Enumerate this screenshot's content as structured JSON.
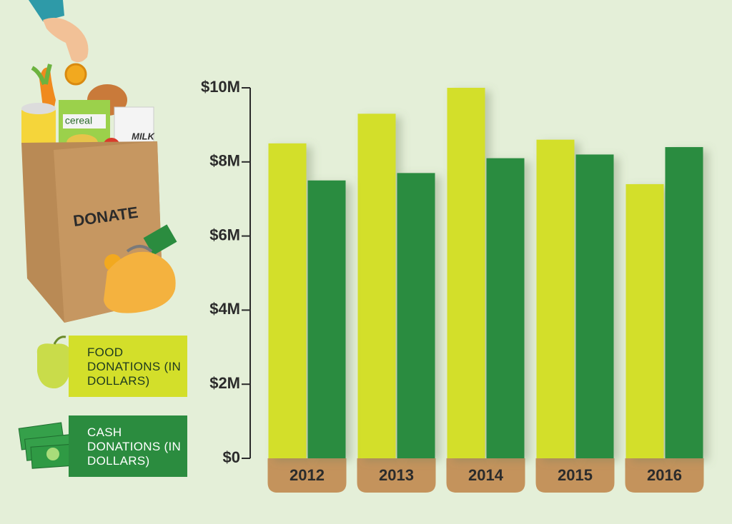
{
  "illustration": {
    "bag_label": "DONATE",
    "box_label": "cereal",
    "carton_label": "MILK"
  },
  "chart_data": {
    "type": "bar",
    "categories": [
      "2012",
      "2013",
      "2014",
      "2015",
      "2016"
    ],
    "series": [
      {
        "name": "FOOD DONATIONS (IN DOLLARS)",
        "color": "#d3df2a",
        "values": [
          8500000,
          9300000,
          10000000,
          8600000,
          7400000
        ]
      },
      {
        "name": "CASH DONATIONS (IN DOLLARS)",
        "color": "#2b8c3f",
        "values": [
          7500000,
          7700000,
          8100000,
          8200000,
          8400000
        ]
      }
    ],
    "ylim": [
      0,
      10000000
    ],
    "yticks": [
      {
        "value": 0,
        "label": "$0"
      },
      {
        "value": 2000000,
        "label": "$2M"
      },
      {
        "value": 4000000,
        "label": "$4M"
      },
      {
        "value": 6000000,
        "label": "$6M"
      },
      {
        "value": 8000000,
        "label": "$8M"
      },
      {
        "value": 10000000,
        "label": "$10M"
      }
    ],
    "grid": false
  }
}
